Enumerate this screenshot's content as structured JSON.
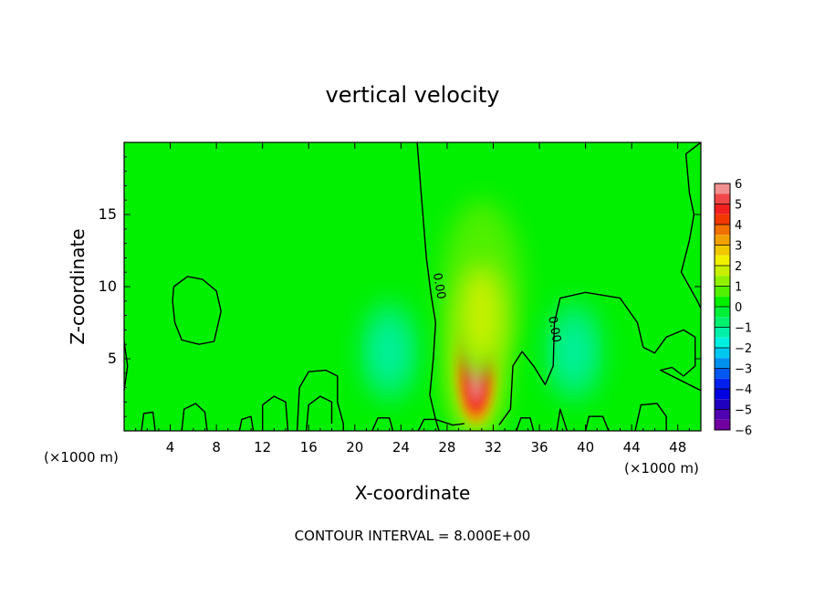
{
  "chart_data": {
    "type": "heatmap",
    "title": "vertical velocity",
    "xlabel": "X-coordinate",
    "ylabel": "Z-coordinate",
    "x_units_left": "(×1000 m)",
    "x_units_right": "(×1000 m)",
    "footer": "CONTOUR INTERVAL = 8.000E+00",
    "xlim": [
      0,
      50
    ],
    "ylim": [
      0,
      20
    ],
    "x_ticks": [
      4,
      8,
      12,
      16,
      20,
      24,
      28,
      32,
      36,
      40,
      44,
      48
    ],
    "y_ticks": [
      5,
      10,
      15
    ],
    "colorbar": {
      "labels": [
        "6",
        "5",
        "4",
        "3",
        "2",
        "1",
        "0",
        "−1",
        "−2",
        "−3",
        "−4",
        "−5",
        "−6"
      ],
      "values": [
        6,
        5,
        4,
        3,
        2,
        1,
        0,
        -1,
        -2,
        -3,
        -4,
        -5,
        -6
      ],
      "bands": [
        {
          "from": 5.5,
          "to": 6,
          "color": "#f09090"
        },
        {
          "from": 5,
          "to": 5.5,
          "color": "#f04848"
        },
        {
          "from": 4.5,
          "to": 5,
          "color": "#f02020"
        },
        {
          "from": 4,
          "to": 4.5,
          "color": "#f03800"
        },
        {
          "from": 3.5,
          "to": 4,
          "color": "#f07000"
        },
        {
          "from": 3,
          "to": 3.5,
          "color": "#f0a000"
        },
        {
          "from": 2.5,
          "to": 3,
          "color": "#f0c800"
        },
        {
          "from": 2,
          "to": 2.5,
          "color": "#f0f000"
        },
        {
          "from": 1.5,
          "to": 2,
          "color": "#c8f000"
        },
        {
          "from": 1,
          "to": 1.5,
          "color": "#90f000"
        },
        {
          "from": 0.5,
          "to": 1,
          "color": "#50f000"
        },
        {
          "from": 0,
          "to": 0.5,
          "color": "#00f000"
        },
        {
          "from": -0.5,
          "to": 0,
          "color": "#00f038"
        },
        {
          "from": -1,
          "to": -0.5,
          "color": "#00f070"
        },
        {
          "from": -1.5,
          "to": -1,
          "color": "#00f0a8"
        },
        {
          "from": -2,
          "to": -1.5,
          "color": "#00f0e0"
        },
        {
          "from": -2.5,
          "to": -2,
          "color": "#00c8f0"
        },
        {
          "from": -3,
          "to": -2.5,
          "color": "#0090f0"
        },
        {
          "from": -3.5,
          "to": -3,
          "color": "#0058f0"
        },
        {
          "from": -4,
          "to": -3.5,
          "color": "#0020f0"
        },
        {
          "from": -4.5,
          "to": -4,
          "color": "#0000e0"
        },
        {
          "from": -5,
          "to": -4.5,
          "color": "#2000c0"
        },
        {
          "from": -5.5,
          "to": -5,
          "color": "#5000b0"
        },
        {
          "from": -6,
          "to": -5.5,
          "color": "#7000a0"
        }
      ]
    },
    "features": [
      {
        "kind": "updraft_core",
        "x": 30.5,
        "z": 4.5,
        "peak": 6
      },
      {
        "kind": "weak_updraft",
        "x": 31,
        "z": 10,
        "peak": 1.5
      },
      {
        "kind": "weak_downdraft",
        "x": 23,
        "z": 5.5,
        "peak": -1.5
      },
      {
        "kind": "weak_downdraft",
        "x": 39,
        "z": 5.5,
        "peak": -1.5
      }
    ],
    "contour_labels": [
      {
        "text": "0.00",
        "x": 27,
        "z": 10
      },
      {
        "text": "0.00",
        "x": 37,
        "z": 7
      }
    ],
    "contour_lines": [
      [
        [
          25.4,
          20
        ],
        [
          25.8,
          16
        ],
        [
          26.2,
          12
        ],
        [
          26.6,
          9.5
        ],
        [
          27,
          7.5
        ],
        [
          26.8,
          5
        ],
        [
          26.5,
          2.5
        ],
        [
          27,
          0.8
        ],
        [
          28.5,
          0.4
        ],
        [
          29.5,
          0.5
        ]
      ],
      [
        [
          32.5,
          0.4
        ],
        [
          33.5,
          1.5
        ],
        [
          33.7,
          4.5
        ],
        [
          34.5,
          5.5
        ],
        [
          35.5,
          4.5
        ],
        [
          36.5,
          3.2
        ],
        [
          37.2,
          4.5
        ],
        [
          37.3,
          7.5
        ],
        [
          37.8,
          9.2
        ],
        [
          40,
          9.6
        ],
        [
          43,
          9.2
        ],
        [
          44.5,
          7.5
        ],
        [
          45,
          5.8
        ],
        [
          46,
          5.4
        ],
        [
          47,
          6.5
        ],
        [
          48.5,
          7
        ],
        [
          49.5,
          6.5
        ],
        [
          49.5,
          4.5
        ],
        [
          48.5,
          3.8
        ],
        [
          47.5,
          4.4
        ],
        [
          46.5,
          4.2
        ],
        [
          50,
          2.8
        ]
      ],
      [
        [
          50,
          20
        ],
        [
          48.7,
          19.2
        ],
        [
          49,
          16.5
        ],
        [
          49.4,
          15
        ],
        [
          49,
          13.2
        ],
        [
          48.3,
          11
        ],
        [
          49,
          10
        ],
        [
          49.7,
          9
        ],
        [
          50,
          8.5
        ]
      ],
      [
        [
          4.3,
          10
        ],
        [
          5.5,
          10.7
        ],
        [
          6.8,
          10.5
        ],
        [
          8,
          9.7
        ],
        [
          8.4,
          8.3
        ],
        [
          7.8,
          6.2
        ],
        [
          6.5,
          6
        ],
        [
          5,
          6.3
        ],
        [
          4.4,
          7.5
        ],
        [
          4.2,
          9
        ],
        [
          4.3,
          10
        ]
      ],
      [
        [
          15,
          0
        ],
        [
          15.2,
          3
        ],
        [
          16,
          4.1
        ],
        [
          17.5,
          4.2
        ],
        [
          18.5,
          3.8
        ],
        [
          18.5,
          2
        ],
        [
          19,
          0.5
        ],
        [
          19,
          0
        ]
      ],
      [
        [
          15.8,
          0
        ],
        [
          16,
          1.8
        ],
        [
          17,
          2.4
        ],
        [
          18,
          2
        ],
        [
          18,
          0.5
        ]
      ],
      [
        [
          12,
          0
        ],
        [
          12,
          1.8
        ],
        [
          13,
          2.4
        ],
        [
          14,
          2
        ],
        [
          14.2,
          0
        ]
      ],
      [
        [
          10,
          0
        ],
        [
          10.2,
          0.8
        ],
        [
          11,
          1
        ],
        [
          11.2,
          0
        ]
      ],
      [
        [
          5,
          0
        ],
        [
          5.2,
          1.5
        ],
        [
          6.2,
          1.9
        ],
        [
          7,
          1.3
        ],
        [
          7.2,
          0
        ]
      ],
      [
        [
          1.5,
          0
        ],
        [
          1.7,
          1.2
        ],
        [
          2.5,
          1.3
        ],
        [
          2.7,
          0
        ]
      ],
      [
        [
          37.5,
          0
        ],
        [
          37.8,
          1.5
        ],
        [
          38.4,
          0
        ]
      ],
      [
        [
          40,
          0
        ],
        [
          40.3,
          1
        ],
        [
          41.5,
          1
        ],
        [
          42,
          0
        ]
      ],
      [
        [
          44.3,
          0
        ],
        [
          44.8,
          1.8
        ],
        [
          46.2,
          1.9
        ],
        [
          47,
          1
        ],
        [
          47,
          0
        ]
      ],
      [
        [
          0,
          2.8
        ],
        [
          0.3,
          4.5
        ],
        [
          0,
          6.2
        ]
      ],
      [
        [
          21.5,
          0
        ],
        [
          22,
          0.9
        ],
        [
          23,
          0.9
        ],
        [
          23.3,
          0
        ]
      ],
      [
        [
          25.5,
          0
        ],
        [
          26,
          0.8
        ],
        [
          27,
          0.8
        ],
        [
          27.3,
          0
        ]
      ],
      [
        [
          34,
          0
        ],
        [
          34.4,
          0.9
        ],
        [
          35.2,
          0.9
        ],
        [
          35.5,
          0
        ]
      ]
    ]
  }
}
